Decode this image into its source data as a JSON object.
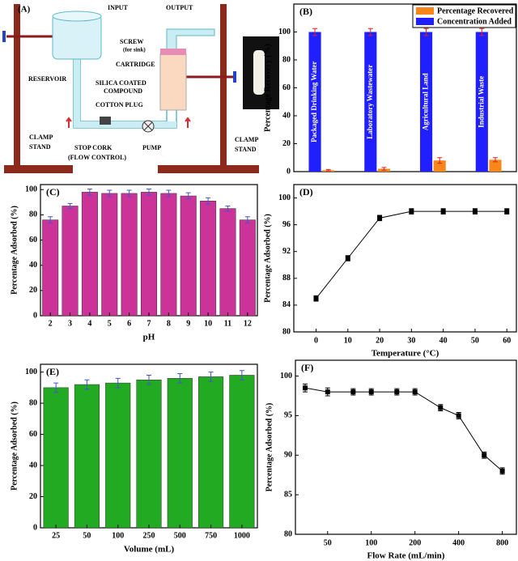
{
  "diagram": {
    "panel_label": "(A)",
    "labels": [
      "INPUT",
      "OUTPUT",
      "SCREW",
      "(for sink)",
      "CARTRIDGE",
      "RESERVOIR",
      "SILICA COATED",
      "COMPOUND",
      "COTTON PLUG",
      "CLAMP",
      "STAND",
      "STOP CORK",
      "(FLOW CONTROL)",
      "PUMP",
      "CLAMP",
      "STAND"
    ]
  },
  "chart_data": [
    {
      "type": "bar",
      "panel_label": "(B)",
      "y_label": "Percentage Recovery (%)",
      "categories": [
        "Packaged Drinking Water",
        "Laboratory Wastewater",
        "Agricultural Land",
        "Industrial Waste"
      ],
      "series": [
        {
          "name": "Percentage Recovered",
          "color": "#f7861b",
          "values": [
            1,
            2,
            8,
            8.5
          ],
          "errors": [
            0.5,
            1,
            2,
            1.5
          ]
        },
        {
          "name": "Concentration Added",
          "color": "#1f1fff",
          "values": [
            100,
            100,
            100,
            100
          ],
          "errors": [
            2.5,
            2.5,
            2.5,
            2.5
          ]
        }
      ],
      "ylim": [
        0,
        120
      ],
      "yticks": [
        0,
        20,
        40,
        60,
        80,
        100
      ],
      "legend": "upper right"
    },
    {
      "type": "bar",
      "panel_label": "(C)",
      "x_label": "pH",
      "y_label": "Percentage Adsorbed (%)",
      "categories": [
        "2",
        "3",
        "4",
        "5",
        "6",
        "7",
        "8",
        "9",
        "10",
        "11",
        "12"
      ],
      "values": [
        76,
        87,
        98,
        97,
        97,
        98,
        97,
        95,
        91,
        85,
        76
      ],
      "errors": [
        2.5,
        2,
        2.5,
        2.5,
        2.5,
        2.5,
        2.5,
        2.5,
        2.5,
        2,
        2.5
      ],
      "color": "#cc3399",
      "ylim": [
        0,
        104
      ],
      "yticks": [
        0,
        20,
        40,
        60,
        80,
        100
      ]
    },
    {
      "type": "line",
      "panel_label": "(D)",
      "x_label": "Temperature (°C)",
      "y_label": "Percentage Adsorbed (%)",
      "x": [
        0,
        10,
        20,
        30,
        40,
        50,
        60
      ],
      "values": [
        85,
        91,
        97,
        98,
        98,
        98,
        98
      ],
      "errors": [
        0.4,
        0.4,
        0.4,
        0.4,
        0.4,
        0.4,
        0.4
      ],
      "color": "#000000",
      "xlim": [
        -7,
        63
      ],
      "xticks": [
        0,
        10,
        20,
        30,
        40,
        50,
        60
      ],
      "ylim": [
        80,
        102
      ],
      "yticks": [
        80,
        84,
        88,
        92,
        96,
        100
      ]
    },
    {
      "type": "bar",
      "panel_label": "(E)",
      "x_label": "Volume (mL)",
      "y_label": "Percentage Adsorbed (%)",
      "categories": [
        "25",
        "50",
        "100",
        "250",
        "500",
        "750",
        "1000"
      ],
      "values": [
        90,
        92,
        93,
        95,
        96,
        97,
        98
      ],
      "errors": [
        3,
        3,
        3,
        3,
        3,
        3,
        3
      ],
      "color": "#22aa22",
      "ylim": [
        0,
        105
      ],
      "yticks": [
        0,
        20,
        40,
        60,
        80,
        100
      ]
    },
    {
      "type": "line",
      "panel_label": "(F)",
      "x_label": "Flow Rate (mL/min)",
      "y_label": "Percentage Adsorbed (%)",
      "x": [
        35,
        50,
        75,
        100,
        150,
        200,
        300,
        400,
        600,
        800
      ],
      "values": [
        98.5,
        98,
        98,
        98,
        98,
        98,
        96,
        95,
        90,
        88
      ],
      "errors": [
        0.5,
        0.5,
        0.4,
        0.4,
        0.4,
        0.4,
        0.4,
        0.4,
        0.4,
        0.4
      ],
      "color": "#000000",
      "xscale": "log",
      "xlim": [
        30,
        1000
      ],
      "xticks": [
        50,
        100,
        200,
        400,
        800
      ],
      "ylim": [
        80,
        102
      ],
      "yticks": [
        80,
        85,
        90,
        95,
        100
      ]
    }
  ]
}
